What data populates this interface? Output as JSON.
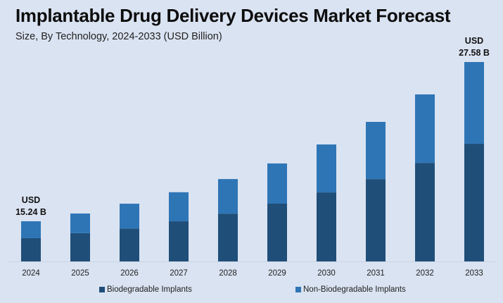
{
  "chart_data": {
    "type": "bar",
    "stacked": true,
    "title": "Implantable Drug Delivery Devices Market Forecast",
    "subtitle": "Size, By Technology, 2024-2033 (USD Billion)",
    "xlabel": "",
    "ylabel": "",
    "categories": [
      "2024",
      "2025",
      "2026",
      "2027",
      "2028",
      "2029",
      "2030",
      "2031",
      "2032",
      "2033"
    ],
    "totals": [
      15.24,
      15.84,
      16.6,
      17.49,
      18.51,
      19.72,
      21.19,
      22.94,
      25.07,
      27.58
    ],
    "series": [
      {
        "name": "Biodegradable Implants",
        "color": "#1f4e79",
        "values": [
          8.84,
          9.35,
          9.46,
          10.14,
          10.74,
          11.63,
          12.5,
          13.53,
          14.79,
          16.27
        ]
      },
      {
        "name": "Non-Biodegradable Implants",
        "color": "#2e75b6",
        "values": [
          6.4,
          6.49,
          7.14,
          7.35,
          7.77,
          8.09,
          8.69,
          9.41,
          10.28,
          11.31
        ]
      }
    ],
    "annotations": [
      {
        "category": "2024",
        "line1": "USD",
        "line2": "15.24 B"
      },
      {
        "category": "2033",
        "line1": "USD",
        "line2": "27.58 B"
      }
    ],
    "axis_visible": false,
    "grid": false,
    "legend_position": "bottom"
  }
}
